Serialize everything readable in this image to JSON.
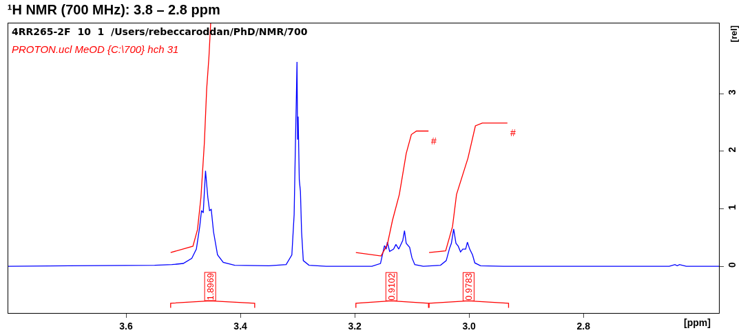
{
  "chart_data": {
    "type": "line",
    "title": "¹H NMR (700 MHz): 3.8 – 2.8 ppm",
    "xlabel": "[ppm]",
    "ylabel": "[rel]",
    "xlim": [
      3.806,
      2.563
    ],
    "xticks": [
      3.6,
      3.4,
      3.2,
      {
        "value": 3.0,
        "label": "3.0"
      },
      2.8
    ],
    "ylim": [
      -0.81,
      4.22
    ],
    "yticks": [
      0,
      1,
      2,
      3
    ],
    "grid": false,
    "marker": "none",
    "line_style": "solid",
    "series": [
      {
        "color": "#0000ff",
        "x": [
          3.806,
          3.7,
          3.55,
          3.52,
          3.5,
          3.485,
          3.477,
          3.471,
          3.468,
          3.465,
          3.461,
          3.457,
          3.454,
          3.451,
          3.447,
          3.44,
          3.43,
          3.41,
          3.35,
          3.32,
          3.31,
          3.306,
          3.304,
          3.302,
          3.301,
          3.3,
          3.299,
          3.297,
          3.295,
          3.293,
          3.29,
          3.28,
          3.25,
          3.17,
          3.155,
          3.148,
          3.145,
          3.143,
          3.139,
          3.132,
          3.128,
          3.123,
          3.116,
          3.113,
          3.11,
          3.104,
          3.1,
          3.095,
          3.08,
          3.05,
          3.04,
          3.034,
          3.031,
          3.027,
          3.023,
          3.019,
          3.015,
          3.011,
          3.006,
          3.003,
          2.999,
          2.994,
          2.99,
          2.98,
          2.94,
          2.65,
          2.64,
          2.636,
          2.632,
          2.62,
          2.563
        ],
        "values": [
          0,
          0.01,
          0.02,
          0.03,
          0.05,
          0.14,
          0.3,
          0.7,
          0.97,
          0.93,
          1.66,
          1.2,
          0.97,
          0.99,
          0.6,
          0.2,
          0.07,
          0.02,
          0.01,
          0.03,
          0.2,
          0.9,
          2.0,
          3.0,
          3.55,
          2.2,
          2.6,
          1.5,
          1.3,
          0.6,
          0.1,
          0.02,
          0,
          0,
          0.05,
          0.36,
          0.3,
          0.42,
          0.26,
          0.3,
          0.38,
          0.3,
          0.45,
          0.62,
          0.4,
          0.33,
          0.15,
          0.03,
          0,
          0.02,
          0.1,
          0.32,
          0.4,
          0.65,
          0.4,
          0.35,
          0.25,
          0.3,
          0.3,
          0.42,
          0.3,
          0.2,
          0.06,
          0.01,
          0,
          0,
          0.03,
          0.01,
          0.03,
          0,
          0
        ]
      },
      {
        "color": "#ff0000",
        "x": [
          3.522,
          3.483,
          3.475,
          3.469,
          3.463,
          3.459,
          3.455,
          3.452
        ],
        "values": [
          0.24,
          0.35,
          0.64,
          1.2,
          2.15,
          3.08,
          3.64,
          4.22
        ]
      },
      {
        "color": "#ff0000",
        "x": [
          3.198,
          3.154,
          3.143,
          3.134,
          3.122,
          3.11,
          3.101,
          3.092,
          3.071
        ],
        "values": [
          0.24,
          0.18,
          0.38,
          0.8,
          1.25,
          1.96,
          2.29,
          2.35,
          2.35
        ]
      },
      {
        "color": "#ff0000",
        "x": [
          3.07,
          3.041,
          3.029,
          3.022,
          3.002,
          2.989,
          2.977,
          2.933
        ],
        "values": [
          0.24,
          0.27,
          0.69,
          1.25,
          1.88,
          2.44,
          2.49,
          2.49
        ]
      },
      {
        "color": "#ff0000",
        "x": [
          3.522,
          3.522,
          3.453,
          3.375,
          3.375
        ],
        "values": [
          -0.72,
          -0.64,
          -0.6,
          -0.64,
          -0.72
        ]
      },
      {
        "color": "#ff0000",
        "x": [
          3.198,
          3.198,
          3.136,
          3.071,
          3.071
        ],
        "values": [
          -0.72,
          -0.64,
          -0.6,
          -0.64,
          -0.72
        ]
      },
      {
        "color": "#ff0000",
        "x": [
          3.07,
          3.07,
          3.001,
          2.931,
          2.931
        ],
        "values": [
          -0.72,
          -0.64,
          -0.6,
          -0.64,
          -0.72
        ]
      }
    ],
    "annotations": [
      "4RR265-2F  10  1  /Users/rebeccaroddan/PhD/NMR/700",
      "PROTON.ucl MeOD {C:\\700} hch 31",
      "#",
      "#",
      {
        "text": "1.8969",
        "x": 3.453,
        "y": -0.6
      },
      {
        "text": "0.9102",
        "x": 3.136,
        "y": -0.6
      },
      {
        "text": "0.9783",
        "x": 3.001,
        "y": -0.6
      }
    ]
  }
}
